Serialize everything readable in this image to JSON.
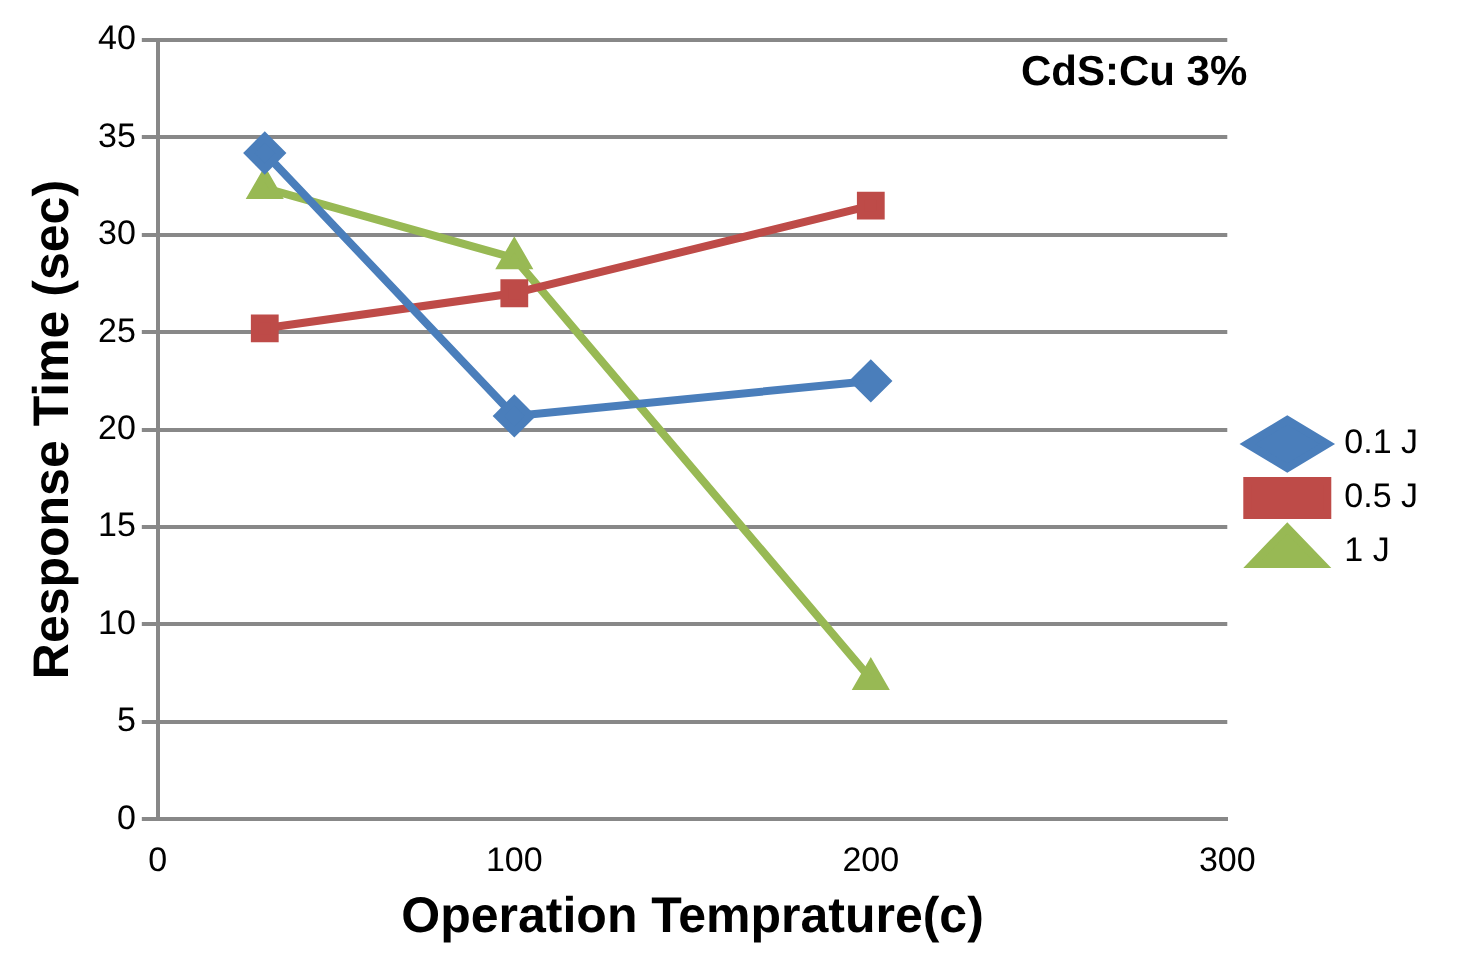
{
  "chart_data": {
    "type": "line",
    "title": "CdS:Cu 3%",
    "xlabel": "Operation Temprature(c)",
    "ylabel": "Response Time (sec)",
    "x": [
      30,
      100,
      200
    ],
    "series": [
      {
        "name": "0.1 J",
        "color": "#4a7ebb",
        "values": [
          34.2,
          20.7,
          22.5
        ],
        "marker": "diamond"
      },
      {
        "name": "0.5 J",
        "color": "#be4b48",
        "values": [
          25.2,
          27.0,
          31.5
        ],
        "marker": "square"
      },
      {
        "name": "1 J",
        "color": "#98b954",
        "values": [
          32.4,
          28.8,
          7.2
        ],
        "marker": "triangle"
      }
    ],
    "xlim": [
      0,
      300
    ],
    "xticks": [
      0,
      100,
      200,
      300
    ],
    "ylim": [
      0,
      40
    ],
    "yticks": [
      0,
      5,
      10,
      15,
      20,
      25,
      30,
      35,
      40
    ],
    "grid": "y",
    "legend": "right",
    "line_style": "solid"
  }
}
